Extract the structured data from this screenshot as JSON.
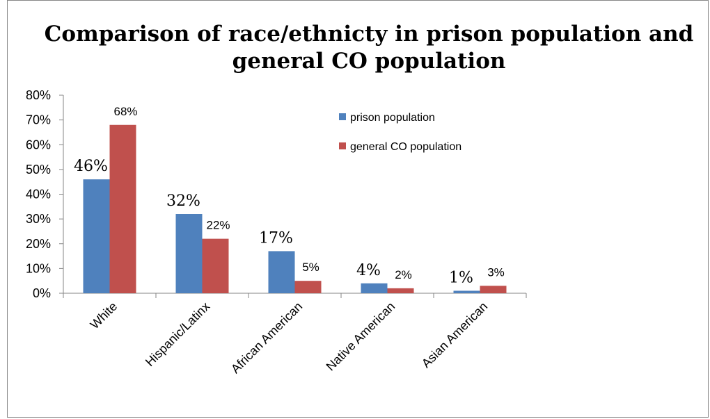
{
  "chart_data": {
    "type": "bar",
    "title": "Comparison of race/ethnicty in prison population and general CO population",
    "title_lines": [
      "Comparison of race/ethnicty in prison population and",
      "general CO population"
    ],
    "categories": [
      "White",
      "Hispanic/Latinx",
      "African American",
      "Native American",
      "Asian American"
    ],
    "series": [
      {
        "name": "prison population",
        "color": "#4f81bd",
        "values": [
          46,
          32,
          17,
          4,
          1
        ],
        "labels": [
          "46%",
          "32%",
          "17%",
          "4%",
          "1%"
        ]
      },
      {
        "name": "general CO population",
        "color": "#c0504d",
        "values": [
          68,
          22,
          5,
          2,
          3
        ],
        "labels": [
          "68%",
          "22%",
          "5%",
          "2%",
          "3%"
        ]
      }
    ],
    "ylim": [
      0,
      80
    ],
    "y_ticks": [
      0,
      10,
      20,
      30,
      40,
      50,
      60,
      70,
      80
    ],
    "y_tick_labels": [
      "0%",
      "10%",
      "20%",
      "30%",
      "40%",
      "50%",
      "60%",
      "70%",
      "80%"
    ],
    "xlabel": "",
    "ylabel": "",
    "grid": false,
    "legend_position": "top-right"
  }
}
